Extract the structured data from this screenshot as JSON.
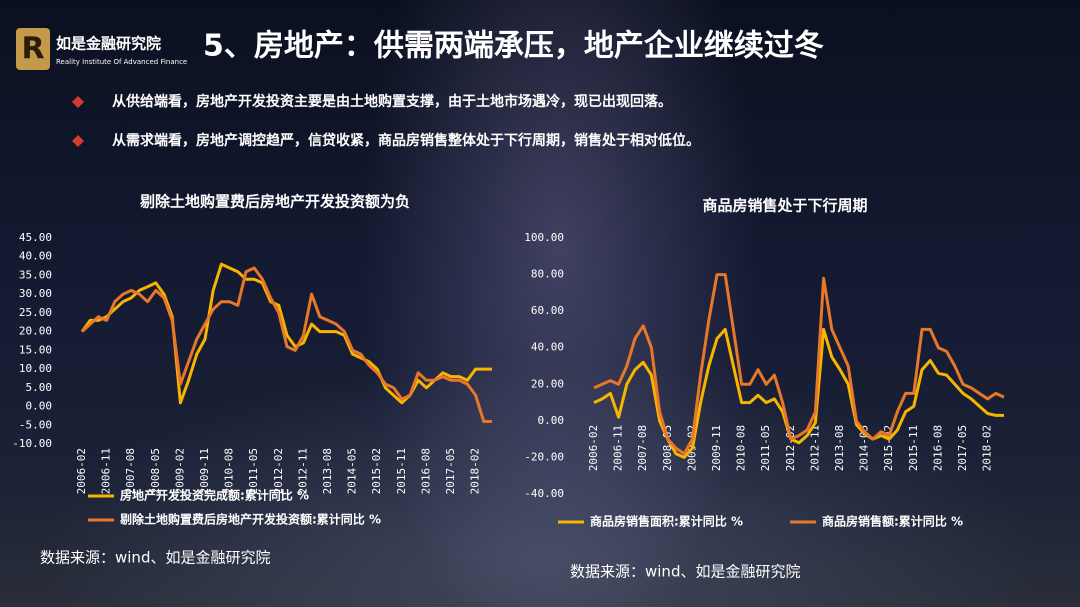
{
  "header": {
    "logo_name": "如是金融研究院",
    "logo_sub": "Reality Institute Of Advanced Finance",
    "title": "5、房地产：供需两端承压，地产企业继续过冬"
  },
  "bullets": [
    "从供给端看，房地产开发投资主要是由土地购置支撑，由于土地市场遇冷，现已出现回落。",
    "从需求端看，房地产调控趋严，信贷收紧，商品房销售整体处于下行周期，销售处于相对低位。"
  ],
  "chart_data": [
    {
      "type": "line",
      "title": "剔除土地购置费后房地产开发投资额为负",
      "source": "数据来源：wind、如是金融研究院",
      "xaxis_at_zero": false,
      "categories": [
        "2006-02",
        null,
        null,
        "2006-11",
        null,
        null,
        "2007-08",
        null,
        null,
        "2008-05",
        null,
        null,
        "2009-02",
        null,
        null,
        "2009-11",
        null,
        null,
        "2010-08",
        null,
        null,
        "2011-05",
        null,
        null,
        "2012-02",
        null,
        null,
        "2012-11",
        null,
        null,
        "2013-08",
        null,
        null,
        "2014-05",
        null,
        null,
        "2015-02",
        null,
        null,
        "2015-11",
        null,
        null,
        "2016-08",
        null,
        null,
        "2017-05",
        null,
        null,
        "2018-02",
        null,
        null
      ],
      "ylim": [
        -10,
        45
      ],
      "yticks": [
        {
          "value": -10,
          "label": "-10.00"
        },
        {
          "value": -5,
          "label": "-5.00"
        },
        {
          "value": 0,
          "label": "0.00"
        },
        {
          "value": 5,
          "label": "5.00"
        },
        {
          "value": 10,
          "label": "10.00"
        },
        {
          "value": 15,
          "label": "15.00"
        },
        {
          "value": 20,
          "label": "20.00"
        },
        {
          "value": 25,
          "label": "25.00"
        },
        {
          "value": 30,
          "label": "30.00"
        },
        {
          "value": 35,
          "label": "35.00"
        },
        {
          "value": 40,
          "label": "40.00"
        },
        {
          "value": 45,
          "label": "45.00"
        }
      ],
      "series": [
        {
          "name": "房地产开发投资完成额:累计同比 %",
          "color": "#f7b500",
          "values": [
            20,
            23,
            23,
            24,
            26,
            28,
            29,
            31,
            32,
            33,
            30,
            24,
            1,
            7,
            14,
            18,
            31,
            38,
            37,
            36,
            34,
            34,
            33,
            28,
            27,
            19,
            16,
            17,
            22,
            20,
            20,
            20,
            19,
            14,
            13,
            12,
            10,
            5,
            3,
            1,
            3,
            7,
            5,
            7,
            9,
            8,
            8,
            7,
            10,
            10,
            10
          ]
        },
        {
          "name": "剔除土地购置费后房地产开发投资额:累计同比 %",
          "color": "#e8772a",
          "values": [
            20,
            22,
            24,
            23,
            28,
            30,
            31,
            30,
            28,
            31,
            29,
            23,
            6,
            12,
            18,
            22,
            26,
            28,
            28,
            27,
            36,
            37,
            34,
            29,
            25,
            16,
            15,
            19,
            30,
            24,
            23,
            22,
            20,
            15,
            14,
            11,
            9,
            6,
            5,
            2,
            3,
            9,
            7,
            7,
            8,
            7,
            7,
            6,
            3,
            -4,
            -4
          ]
        }
      ]
    },
    {
      "type": "line",
      "title": "商品房销售处于下行周期",
      "source": "数据来源：wind、如是金融研究院",
      "xaxis_at_zero": true,
      "categories": [
        "2006-02",
        null,
        null,
        "2006-11",
        null,
        null,
        "2007-08",
        null,
        null,
        "2008-05",
        null,
        null,
        "2009-02",
        null,
        null,
        "2009-11",
        null,
        null,
        "2010-08",
        null,
        null,
        "2011-05",
        null,
        null,
        "2012-02",
        null,
        null,
        "2012-11",
        null,
        null,
        "2013-08",
        null,
        null,
        "2014-05",
        null,
        null,
        "2015-02",
        null,
        null,
        "2015-11",
        null,
        null,
        "2016-08",
        null,
        null,
        "2017-05",
        null,
        null,
        "2018-02",
        null,
        null
      ],
      "ylim": [
        -40,
        100
      ],
      "yticks": [
        {
          "value": -40,
          "label": "-40.00"
        },
        {
          "value": -20,
          "label": "-20.00"
        },
        {
          "value": 0,
          "label": "0.00"
        },
        {
          "value": 20,
          "label": "20.00"
        },
        {
          "value": 40,
          "label": "40.00"
        },
        {
          "value": 60,
          "label": "60.00"
        },
        {
          "value": 80,
          "label": "80.00"
        },
        {
          "value": 100,
          "label": "100.00"
        }
      ],
      "series": [
        {
          "name": "商品房销售面积:累计同比 %",
          "color": "#f7b500",
          "values": [
            10,
            12,
            15,
            2,
            20,
            28,
            32,
            25,
            0,
            -10,
            -18,
            -20,
            -15,
            10,
            30,
            45,
            50,
            30,
            10,
            10,
            14,
            10,
            12,
            5,
            -10,
            -12,
            -8,
            -1,
            50,
            35,
            28,
            20,
            -2,
            -7,
            -10,
            -8,
            -10,
            -5,
            5,
            8,
            28,
            33,
            26,
            25,
            20,
            15,
            12,
            8,
            4,
            3,
            3
          ]
        },
        {
          "name": "商品房销售额:累计同比 %",
          "color": "#e8772a",
          "values": [
            18,
            20,
            22,
            20,
            30,
            45,
            52,
            40,
            5,
            -10,
            -15,
            -18,
            -10,
            25,
            55,
            80,
            80,
            50,
            20,
            20,
            28,
            20,
            25,
            10,
            -10,
            -8,
            -5,
            5,
            78,
            50,
            40,
            30,
            0,
            -6,
            -10,
            -6,
            -8,
            5,
            15,
            15,
            50,
            50,
            40,
            38,
            30,
            20,
            18,
            15,
            12,
            15,
            13
          ]
        }
      ]
    }
  ]
}
